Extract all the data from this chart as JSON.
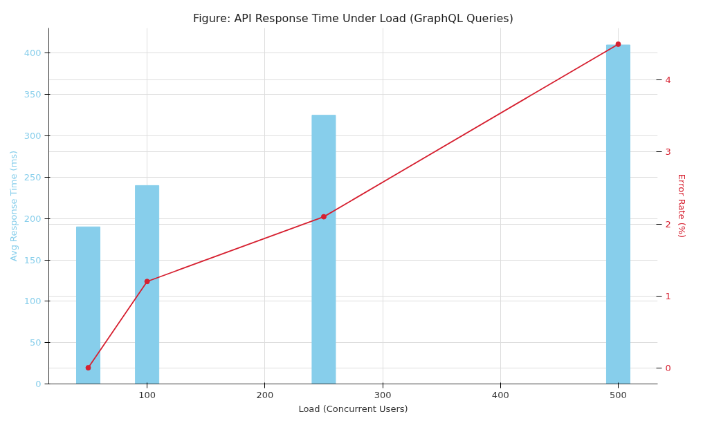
{
  "chart_data": {
    "type": "bar",
    "title": "Figure: API Response Time Under Load (GraphQL Queries)",
    "xlabel": "Load (Concurrent Users)",
    "ylabel": "Avg Response Time (ms)",
    "y2label": "Error Rate (%)",
    "x": [
      50,
      100,
      250,
      500
    ],
    "series": [
      {
        "color": "#87ceeb",
        "values": [
          190,
          240,
          325,
          410
        ]
      },
      {
        "type": "line",
        "axis": "y2",
        "color": "#d62030",
        "marker": "circle",
        "line_style": "solid",
        "values": [
          0.0,
          1.2,
          2.1,
          4.5
        ]
      }
    ],
    "xlim": [
      16.5,
      533.5
    ],
    "xticks": [
      100,
      200,
      300,
      400,
      500
    ],
    "ylim": [
      0,
      430.5
    ],
    "yticks": [
      0,
      50,
      100,
      150,
      200,
      250,
      300,
      350,
      400
    ],
    "y2lim": [
      -0.225,
      4.725
    ],
    "y2ticks": [
      0,
      1,
      2,
      3,
      4
    ],
    "grid": true
  }
}
